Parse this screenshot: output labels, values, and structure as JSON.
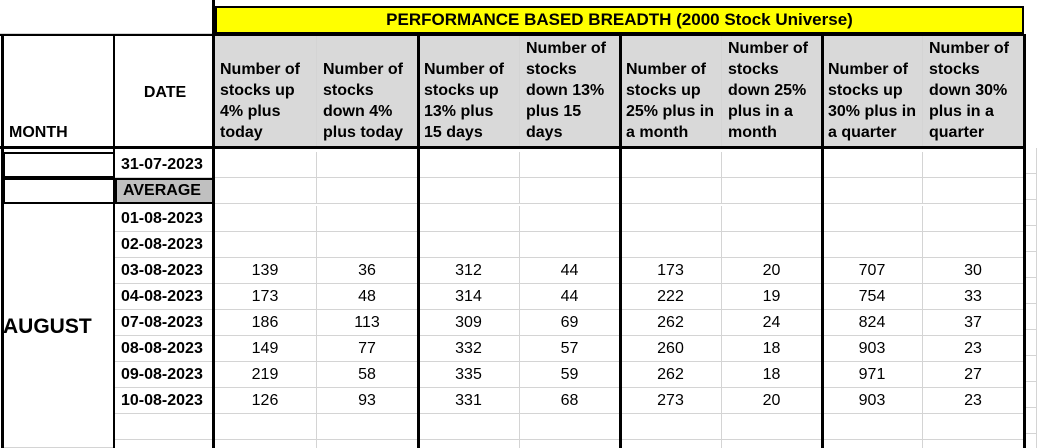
{
  "header": {
    "title": "PERFORMANCE BASED BREADTH (2000 Stock Universe)"
  },
  "columns": [
    "MONTH",
    "DATE",
    "Number of stocks up 4% plus today",
    "Number of stocks down 4% plus today",
    "Number of stocks up 13% plus 15 days",
    "Number of stocks down 13% plus 15 days",
    "Number of stocks up 25% plus in a month",
    "Number of stocks down 25% plus in a month",
    "Number of stocks up 30% plus in a quarter",
    "Number of stocks down 30% plus in a quarter"
  ],
  "month": "AUGUST",
  "rows": [
    {
      "date": "31-07-2023"
    },
    {
      "date": "AVERAGE"
    },
    {
      "date": "01-08-2023"
    },
    {
      "date": "02-08-2023"
    },
    {
      "date": "03-08-2023",
      "values": [
        139,
        36,
        312,
        44,
        173,
        20,
        707,
        30
      ]
    },
    {
      "date": "04-08-2023",
      "values": [
        173,
        48,
        314,
        44,
        222,
        19,
        754,
        33
      ]
    },
    {
      "date": "07-08-2023",
      "values": [
        186,
        113,
        309,
        69,
        262,
        24,
        824,
        37
      ]
    },
    {
      "date": "08-08-2023",
      "values": [
        149,
        77,
        332,
        57,
        260,
        18,
        903,
        23
      ]
    },
    {
      "date": "09-08-2023",
      "values": [
        219,
        58,
        335,
        59,
        262,
        18,
        971,
        27
      ]
    },
    {
      "date": "10-08-2023",
      "values": [
        126,
        93,
        331,
        68,
        273,
        20,
        903,
        23
      ]
    }
  ]
}
